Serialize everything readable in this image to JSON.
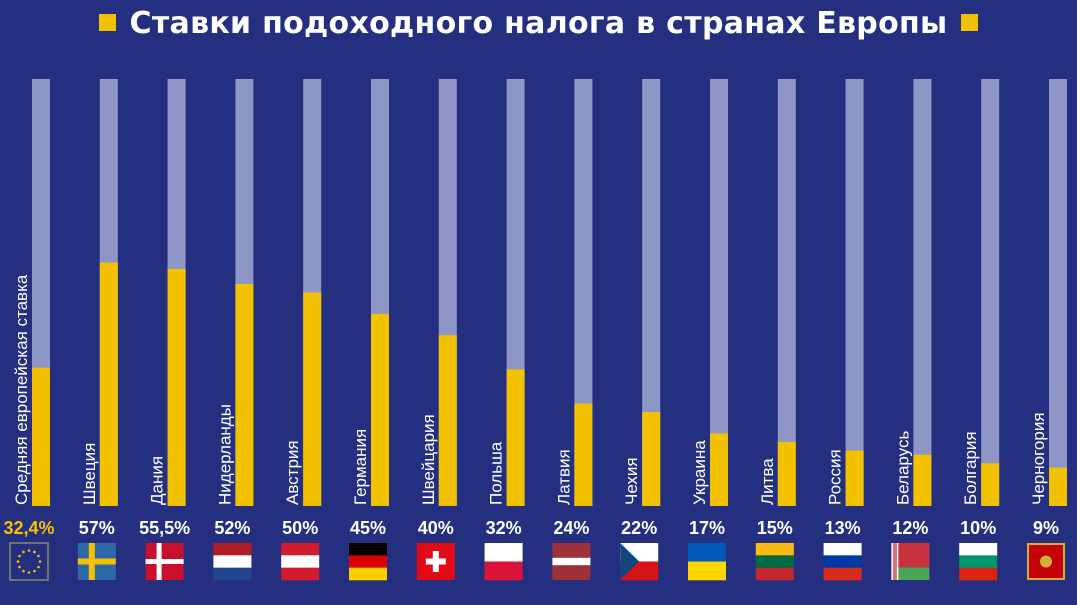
{
  "colors": {
    "background": "#24307f",
    "bar_fill": "#f2c200",
    "bar_track": "#8d96c4",
    "highlight_label": "#f2c200",
    "label": "#ffffff"
  },
  "chart_data": {
    "type": "bar",
    "title": "Ставки подоходного налога в странах Европы",
    "xlabel": "",
    "ylabel": "",
    "ylim": [
      0,
      100
    ],
    "grid": false,
    "legend": "none",
    "categories": [
      "Средняя европейская ставка",
      "Швеция",
      "Дания",
      "Нидерланды",
      "Австрия",
      "Германия",
      "Швейцария",
      "Польша",
      "Латвия",
      "Чехия",
      "Украина",
      "Литва",
      "Россия",
      "Беларусь",
      "Болгария",
      "Черногория"
    ],
    "values": [
      32.4,
      57,
      55.5,
      52,
      50,
      45,
      40,
      32,
      24,
      22,
      17,
      15,
      13,
      12,
      10,
      9
    ],
    "value_labels": [
      "32,4%",
      "57%",
      "55,5%",
      "52%",
      "50%",
      "45%",
      "40%",
      "32%",
      "24%",
      "22%",
      "17%",
      "15%",
      "13%",
      "12%",
      "10%",
      "9%"
    ],
    "flags": [
      "eu-flag-icon",
      "sweden-flag-icon",
      "denmark-flag-icon",
      "netherlands-flag-icon",
      "austria-flag-icon",
      "germany-flag-icon",
      "switzerland-flag-icon",
      "poland-flag-icon",
      "latvia-flag-icon",
      "czechia-flag-icon",
      "ukraine-flag-icon",
      "lithuania-flag-icon",
      "russia-flag-icon",
      "belarus-flag-icon",
      "bulgaria-flag-icon",
      "montenegro-flag-icon"
    ]
  }
}
